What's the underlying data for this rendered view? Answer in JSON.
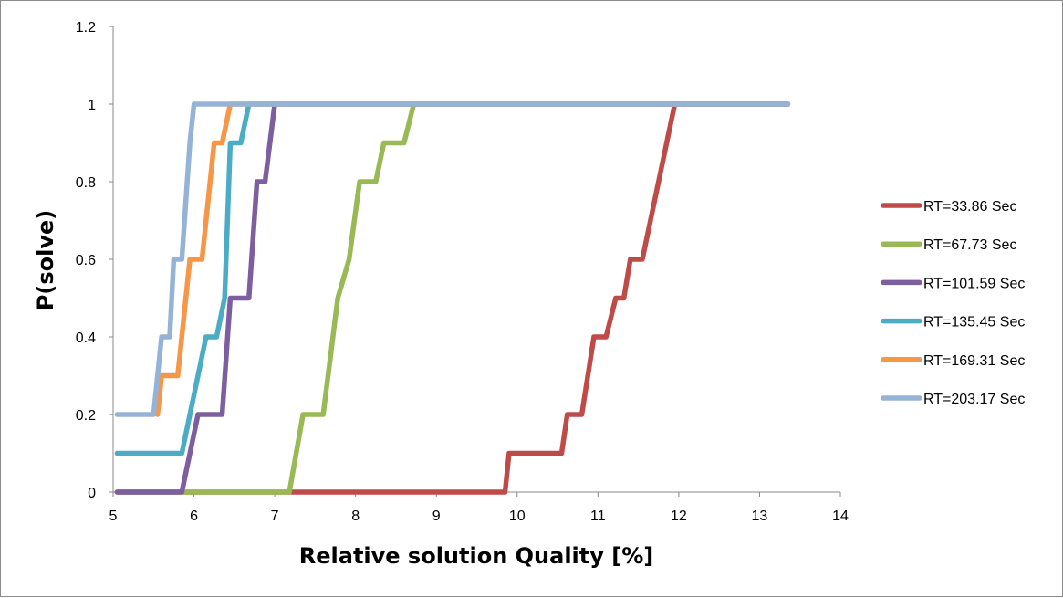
{
  "chart_data": {
    "type": "line",
    "title": "",
    "xlabel": "Relative solution Quality [%]",
    "ylabel": "P(solve)",
    "xlim": [
      5,
      14
    ],
    "ylim": [
      0,
      1.2
    ],
    "x_ticks": [
      "5",
      "6",
      "7",
      "8",
      "9",
      "10",
      "11",
      "12",
      "13",
      "14"
    ],
    "y_ticks": [
      "0",
      "0.2",
      "0.4",
      "0.6",
      "0.8",
      "1",
      "1.2"
    ],
    "grid": false,
    "legend_position": "right",
    "series": [
      {
        "name": "RT=33.86 Sec",
        "color": "#be4b48",
        "points": [
          [
            5.05,
            0
          ],
          [
            9.85,
            0
          ],
          [
            9.9,
            0.1
          ],
          [
            10.55,
            0.1
          ],
          [
            10.62,
            0.2
          ],
          [
            10.8,
            0.2
          ],
          [
            10.95,
            0.4
          ],
          [
            11.1,
            0.4
          ],
          [
            11.22,
            0.5
          ],
          [
            11.32,
            0.5
          ],
          [
            11.4,
            0.6
          ],
          [
            11.55,
            0.6
          ],
          [
            11.95,
            1.0
          ],
          [
            13.35,
            1.0
          ]
        ]
      },
      {
        "name": "RT=67.73 Sec",
        "color": "#98b954",
        "points": [
          [
            5.05,
            0
          ],
          [
            7.18,
            0
          ],
          [
            7.35,
            0.2
          ],
          [
            7.6,
            0.2
          ],
          [
            7.78,
            0.5
          ],
          [
            7.92,
            0.6
          ],
          [
            8.05,
            0.8
          ],
          [
            8.25,
            0.8
          ],
          [
            8.35,
            0.9
          ],
          [
            8.6,
            0.9
          ],
          [
            8.72,
            1.0
          ],
          [
            13.35,
            1.0
          ]
        ]
      },
      {
        "name": "RT=101.59 Sec",
        "color": "#7d5fa0",
        "points": [
          [
            5.05,
            0
          ],
          [
            5.85,
            0
          ],
          [
            6.05,
            0.2
          ],
          [
            6.35,
            0.2
          ],
          [
            6.45,
            0.5
          ],
          [
            6.68,
            0.5
          ],
          [
            6.78,
            0.8
          ],
          [
            6.88,
            0.8
          ],
          [
            7.0,
            1.0
          ],
          [
            13.35,
            1.0
          ]
        ]
      },
      {
        "name": "RT=135.45 Sec",
        "color": "#4aacc5",
        "points": [
          [
            5.05,
            0.1
          ],
          [
            5.85,
            0.1
          ],
          [
            6.05,
            0.3
          ],
          [
            6.15,
            0.4
          ],
          [
            6.28,
            0.4
          ],
          [
            6.38,
            0.5
          ],
          [
            6.45,
            0.9
          ],
          [
            6.58,
            0.9
          ],
          [
            6.68,
            1.0
          ],
          [
            13.35,
            1.0
          ]
        ]
      },
      {
        "name": "RT=169.31 Sec",
        "color": "#f79646",
        "points": [
          [
            5.55,
            0.2
          ],
          [
            5.6,
            0.3
          ],
          [
            5.8,
            0.3
          ],
          [
            5.9,
            0.5
          ],
          [
            5.95,
            0.6
          ],
          [
            6.1,
            0.6
          ],
          [
            6.25,
            0.9
          ],
          [
            6.35,
            0.9
          ],
          [
            6.45,
            1.0
          ],
          [
            13.35,
            1.0
          ]
        ]
      },
      {
        "name": "RT=203.17 Sec",
        "color": "#95b3d7",
        "points": [
          [
            5.05,
            0.2
          ],
          [
            5.5,
            0.2
          ],
          [
            5.6,
            0.4
          ],
          [
            5.7,
            0.4
          ],
          [
            5.75,
            0.6
          ],
          [
            5.85,
            0.6
          ],
          [
            5.95,
            0.9
          ],
          [
            6.0,
            1.0
          ],
          [
            13.35,
            1.0
          ]
        ]
      }
    ]
  },
  "colors": {
    "axis": "#888888",
    "frame": "#8c8c8c",
    "background": "#ffffff"
  }
}
